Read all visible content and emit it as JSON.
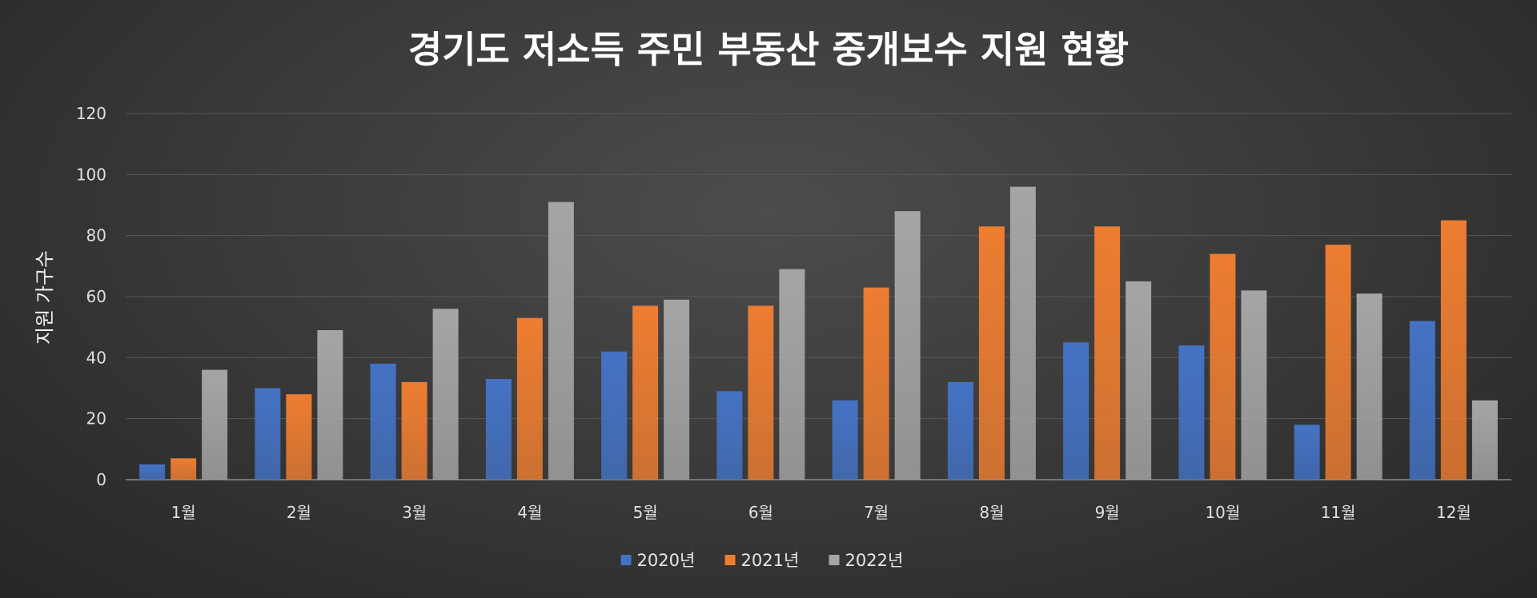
{
  "chart_data": {
    "type": "bar",
    "title": "경기도 저소득 주민 부동산 중개보수 지원 현황",
    "xlabel": "",
    "ylabel": "지원 가구수",
    "ylim": [
      0,
      120
    ],
    "yticks": [
      0,
      20,
      40,
      60,
      80,
      100,
      120
    ],
    "grid": true,
    "legend_position": "bottom",
    "categories": [
      "1월",
      "2월",
      "3월",
      "4월",
      "5월",
      "6월",
      "7월",
      "8월",
      "9월",
      "10월",
      "11월",
      "12월"
    ],
    "series": [
      {
        "name": "2020년",
        "color": "#4472c4",
        "values": [
          5,
          30,
          38,
          33,
          42,
          29,
          26,
          32,
          45,
          44,
          18,
          52
        ]
      },
      {
        "name": "2021년",
        "color": "#ed7d31",
        "values": [
          7,
          28,
          32,
          53,
          57,
          57,
          63,
          83,
          83,
          74,
          77,
          85
        ]
      },
      {
        "name": "2022년",
        "color": "#a5a5a5",
        "values": [
          36,
          49,
          56,
          91,
          59,
          69,
          88,
          96,
          65,
          62,
          61,
          26
        ]
      }
    ]
  }
}
